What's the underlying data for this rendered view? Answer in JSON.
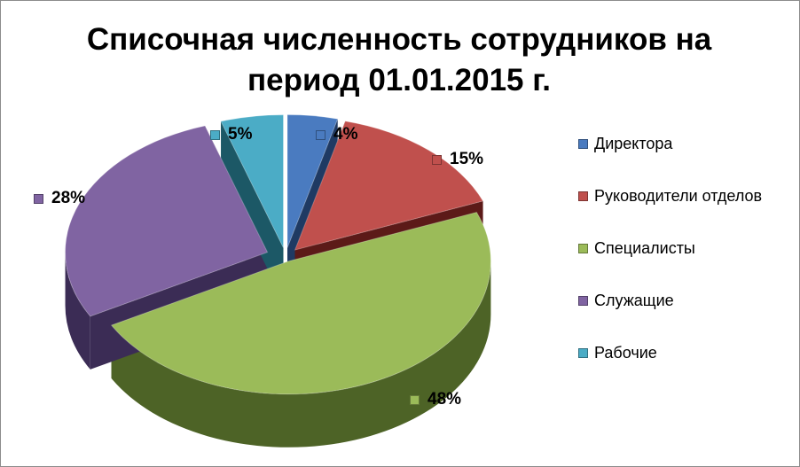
{
  "chart_data": {
    "type": "pie",
    "title_lines": [
      "Списочная численность сотрудников на",
      "период 01.01.2015 г."
    ],
    "categories": [
      "Директора",
      "Руководители отделов",
      "Специалисты",
      "Служащие",
      "Рабочие"
    ],
    "values": [
      4,
      15,
      48,
      28,
      5
    ],
    "data_labels": [
      "4%",
      "15%",
      "48%",
      "28%",
      "5%"
    ],
    "unit": "%",
    "style": "3d exploded",
    "legend_position": "right",
    "colors": {
      "top": [
        "#4a7bc0",
        "#c0504d",
        "#9bbb59",
        "#8064a2",
        "#4bacc6"
      ],
      "side": [
        "#1f3a63",
        "#5c1a18",
        "#4d6326",
        "#3b2c55",
        "#1c5866"
      ]
    }
  }
}
